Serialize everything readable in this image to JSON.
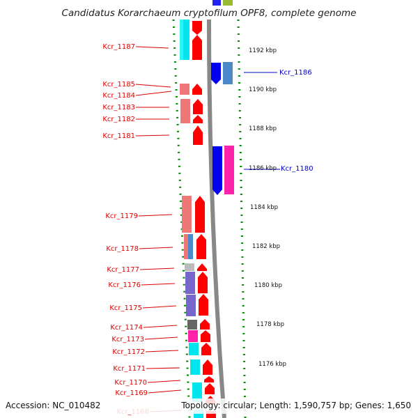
{
  "title": "Candidatus Korarchaeum cryptofilum OPF8, complete genome",
  "footer": {
    "accession": "Accession: NC_010482",
    "summary": "Topology: circular; Length: 1,590,757 bp; Genes: 1,650"
  },
  "colors": {
    "label_left": "#dd0000",
    "label_right": "#0000cc",
    "backbone": "#888888",
    "tick": "#008800",
    "cds_fwd": "#ff0000",
    "cds_rev": "#0000ee",
    "pink": "#ff22aa"
  },
  "kbp_labels": [
    "1192 kbp",
    "1190 kbp",
    "1188 kbp",
    "1186 kbp",
    "1184 kbp",
    "1182 kbp",
    "1180 kbp",
    "1178 kbp",
    "1176 kbp"
  ],
  "left_genes": [
    "Kcr_1187",
    "Kcr_1185",
    "Kcr_1184",
    "Kcr_1183",
    "Kcr_1182",
    "Kcr_1181",
    "Kcr_1179",
    "Kcr_1178",
    "Kcr_1177",
    "Kcr_1176",
    "Kcr_1175",
    "Kcr_1174",
    "Kcr_1173",
    "Kcr_1172",
    "Kcr_1171",
    "Kcr_1170",
    "Kcr_1169",
    "Kcr_1168"
  ],
  "right_genes": [
    "Kcr_1186",
    "Kcr_1180"
  ]
}
